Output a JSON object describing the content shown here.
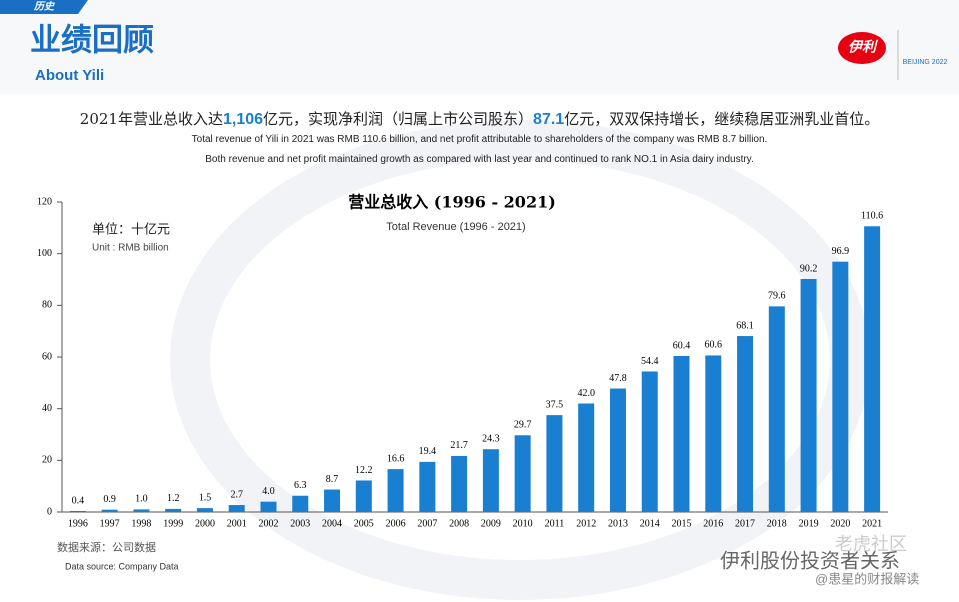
{
  "header": {
    "tag": "历史",
    "title": "业绩回顾",
    "subtitle": "About Yili",
    "logo": "伊利",
    "partner": "BEIJING 2022"
  },
  "headline": {
    "parts": [
      "2021年营业总收入达",
      "1,106",
      "亿元，实现净利润（归属上市公司股东）",
      "87.1",
      "亿元，双双保持增长，继续稳居亚洲乳业首位。"
    ],
    "english": [
      "Total revenue of Yili in 2021 was RMB 110.6 billion, and net profit attributable to shareholders of the company was RMB 8.7 billion.",
      "Both revenue and net profit maintained growth as compared with last year and continued to rank NO.1 in Asia dairy industry."
    ]
  },
  "chart_data": {
    "type": "bar",
    "title": "营业总收入 (1996 - 2021)",
    "subtitle": "Total Revenue (1996 - 2021)",
    "unit": "单位：十亿元",
    "unit_en": "Unit : RMB billion",
    "categories": [
      "1996",
      "1997",
      "1998",
      "1999",
      "2000",
      "2001",
      "2002",
      "2003",
      "2004",
      "2005",
      "2006",
      "2007",
      "2008",
      "2009",
      "2010",
      "2011",
      "2012",
      "2013",
      "2014",
      "2015",
      "2016",
      "2017",
      "2018",
      "2019",
      "2020",
      "2021"
    ],
    "values": [
      0.4,
      0.9,
      1.0,
      1.2,
      1.5,
      2.7,
      4.0,
      6.3,
      8.7,
      12.2,
      16.6,
      19.4,
      21.7,
      24.3,
      29.7,
      37.5,
      42.0,
      47.8,
      54.4,
      60.4,
      60.6,
      68.1,
      79.6,
      90.2,
      96.9,
      110.6
    ],
    "value_labels": [
      "0.4",
      "0.9",
      "1.0",
      "1.2",
      "1.5",
      "2.7",
      "4.0",
      "6.3",
      "8.7",
      "12.2",
      "16.6",
      "19.4",
      "21.7",
      "24.3",
      "29.7",
      "37.5",
      "42.0",
      "47.8",
      "54.4",
      "60.4",
      "60.6",
      "68.1",
      "79.6",
      "90.2",
      "96.9",
      "110.6"
    ],
    "color": "#1a7fd0",
    "ylim": [
      0,
      120
    ],
    "yticks": [
      0,
      20,
      40,
      60,
      80,
      100,
      120
    ],
    "grid": false
  },
  "footer": {
    "source": "数据来源：公司数据",
    "source_en": "Data source: Company Data"
  },
  "watermark": {
    "brand": "伊利股份投资者关系",
    "author": "@患星的财报解读",
    "site": "老虎社区"
  }
}
